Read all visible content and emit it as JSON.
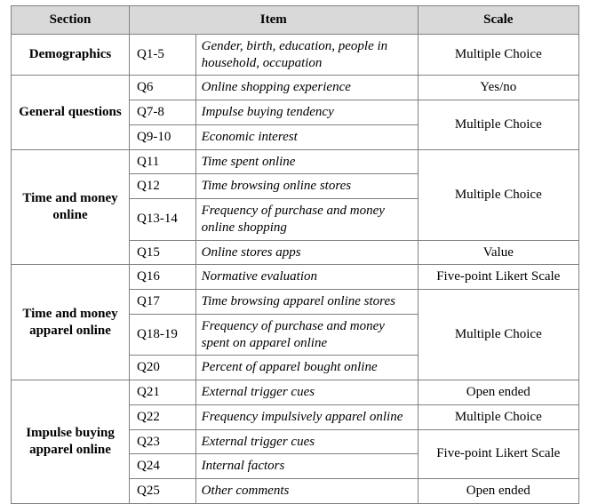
{
  "header": {
    "section": "Section",
    "item": "Item",
    "scale": "Scale"
  },
  "sections": {
    "demographics": {
      "title": "Demographics",
      "rows": [
        {
          "q": "Q1-5",
          "item": "Gender, birth, education, people in household, occupation",
          "scale": "Multiple Choice"
        }
      ]
    },
    "general": {
      "title": "General questions",
      "rows": [
        {
          "q": "Q6",
          "item": "Online shopping experience",
          "scale": "Yes/no"
        },
        {
          "q": "Q7-8",
          "item": "Impulse buying tendency"
        },
        {
          "q": "Q9-10",
          "item": "Economic interest"
        }
      ],
      "scale_mc": "Multiple Choice"
    },
    "time_money_online": {
      "title": "Time and money online",
      "rows": [
        {
          "q": "Q11",
          "item": "Time spent online"
        },
        {
          "q": "Q12",
          "item": "Time browsing online stores"
        },
        {
          "q": "Q13-14",
          "item": "Frequency of purchase and money online shopping"
        },
        {
          "q": "Q15",
          "item": "Online stores apps",
          "scale": "Value"
        }
      ],
      "scale_mc": "Multiple Choice"
    },
    "time_money_apparel": {
      "title": "Time and money apparel online",
      "rows": [
        {
          "q": "Q16",
          "item": "Normative evaluation",
          "scale": "Five-point Likert Scale"
        },
        {
          "q": "Q17",
          "item": "Time browsing apparel online stores"
        },
        {
          "q": "Q18-19",
          "item": "Frequency of purchase and money spent on apparel online"
        },
        {
          "q": "Q20",
          "item": "Percent of apparel bought online"
        }
      ],
      "scale_mc": "Multiple Choice"
    },
    "impulse_apparel": {
      "title": "Impulse buying apparel online",
      "rows": [
        {
          "q": "Q21",
          "item": "External trigger cues",
          "scale": "Open ended"
        },
        {
          "q": "Q22",
          "item": "Frequency impulsively apparel online",
          "scale": "Multiple Choice"
        },
        {
          "q": "Q23",
          "item": "External trigger cues"
        },
        {
          "q": "Q24",
          "item": "Internal factors"
        },
        {
          "q": "Q25",
          "item": "Other comments",
          "scale": "Open ended"
        }
      ],
      "scale_likert": "Five-point Likert Scale"
    }
  }
}
